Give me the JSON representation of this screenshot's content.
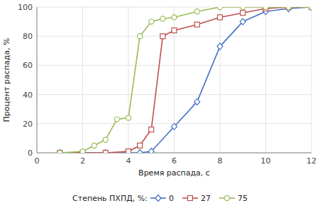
{
  "chart_data": {
    "type": "line",
    "xlabel": "Время распада, с",
    "ylabel": "Процент распада, %",
    "legend_title": "Степень ПХПД, %:  ",
    "legend": "bottom",
    "grid": true,
    "xlim": [
      0,
      12
    ],
    "ylim": [
      0,
      100
    ],
    "xticks": [
      0,
      2,
      4,
      6,
      8,
      10,
      12
    ],
    "yticks": [
      0,
      20,
      40,
      60,
      80,
      100
    ],
    "series": [
      {
        "name": "0",
        "color": "#4472C4",
        "marker": "diamond",
        "x": [
          1,
          2,
          3,
          4,
          4.5,
          5,
          6,
          7,
          8,
          9,
          10,
          11,
          12
        ],
        "values": [
          0,
          0,
          0,
          0,
          0,
          1,
          18,
          35,
          73,
          90,
          97,
          99,
          100
        ]
      },
      {
        "name": "27",
        "color": "#C0504D",
        "marker": "square",
        "x": [
          1,
          2,
          3,
          4,
          4.5,
          5,
          5.5,
          6,
          7,
          8,
          9,
          10,
          11,
          12
        ],
        "values": [
          0,
          0,
          0,
          1,
          5,
          16,
          80,
          84,
          88,
          93,
          96,
          99,
          100,
          100
        ]
      },
      {
        "name": "75",
        "color": "#9BBB59",
        "marker": "circle",
        "x": [
          1,
          2,
          2.5,
          3,
          3.5,
          4,
          4.5,
          5,
          5.5,
          6,
          7,
          8,
          9,
          10,
          11,
          12
        ],
        "values": [
          0,
          1,
          5,
          9,
          23,
          24,
          80,
          90,
          92,
          93,
          97,
          100,
          100,
          100,
          100,
          100
        ]
      }
    ]
  }
}
